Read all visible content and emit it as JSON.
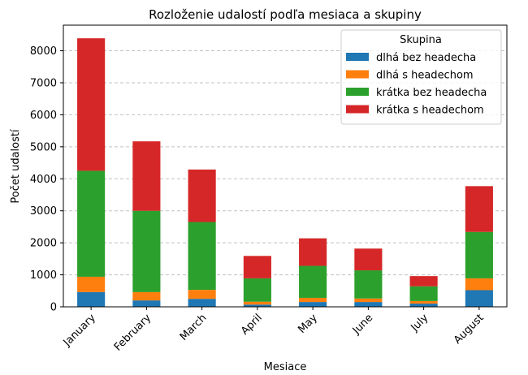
{
  "chart_data": {
    "type": "bar",
    "stacked": true,
    "title": "Rozloženie udalostí podľa mesiaca a skupiny",
    "xlabel": "Mesiace",
    "ylabel": "Počet udalostí",
    "ylim": [
      0,
      8800
    ],
    "yticks": [
      0,
      1000,
      2000,
      3000,
      4000,
      5000,
      6000,
      7000,
      8000
    ],
    "grid": "y-dashed",
    "legend_title": "Skupina",
    "legend_placement": "top-right",
    "categories": [
      "January",
      "February",
      "March",
      "April",
      "May",
      "June",
      "July",
      "August"
    ],
    "series": [
      {
        "name": "dlhá bez headecha",
        "color": "#1f77b4",
        "values": [
          460,
          200,
          250,
          70,
          150,
          150,
          100,
          520
        ]
      },
      {
        "name": "dlhá s headechom",
        "color": "#ff7f0e",
        "values": [
          480,
          260,
          280,
          90,
          130,
          110,
          80,
          370
        ]
      },
      {
        "name": "krátka bez headecha",
        "color": "#2ca02c",
        "values": [
          3310,
          2540,
          2120,
          730,
          1000,
          880,
          460,
          1450
        ]
      },
      {
        "name": "krátka s headechom",
        "color": "#d62728",
        "values": [
          4140,
          2170,
          1640,
          700,
          860,
          680,
          320,
          1430
        ]
      }
    ]
  }
}
